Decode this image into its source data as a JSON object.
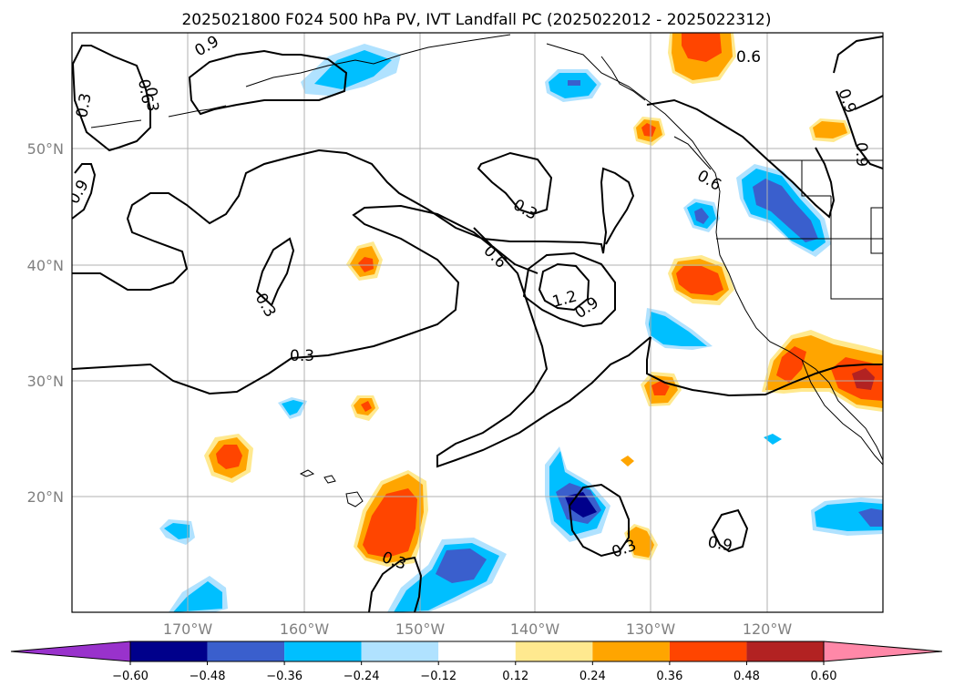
{
  "title": "2025021800 F024 500 hPa PV, IVT Landfall PC (2025022012 - 2025022312)",
  "map": {
    "lon_ticks": [
      "170°W",
      "160°W",
      "150°W",
      "140°W",
      "130°W",
      "120°W"
    ],
    "lat_ticks": [
      "50°N",
      "40°N",
      "30°N",
      "20°N"
    ],
    "grid": true
  },
  "contour_labels": [
    "0.9",
    "0.6",
    "0.3",
    "0.9",
    "0.3",
    "0.6",
    "1.2",
    "0.9",
    "0.3",
    "0.3",
    "0.3",
    "0.3",
    "0.6",
    "0.9",
    "0.6",
    "0.9",
    "0.9",
    "0.3"
  ],
  "colorbar": {
    "ticks": [
      "−0.60",
      "−0.48",
      "−0.36",
      "−0.24",
      "−0.12",
      "0.12",
      "0.24",
      "0.36",
      "0.48",
      "0.60"
    ],
    "colors": {
      "under": "#9932cc",
      "bins": [
        "#00008b",
        "#3a5fcd",
        "#00bfff",
        "#b0e2ff",
        "#ffffff",
        "#ffe98f",
        "#ffa500",
        "#ff4500",
        "#b22222"
      ],
      "over": "#ff88a8"
    }
  }
}
